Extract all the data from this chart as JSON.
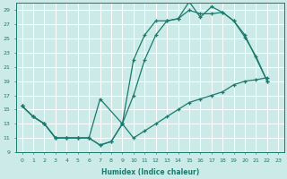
{
  "xlabel": "Humidex (Indice chaleur)",
  "bg_color": "#cceae7",
  "line_color": "#1a7a6e",
  "grid_color": "#ffffff",
  "xlim": [
    -0.5,
    23.5
  ],
  "ylim": [
    9,
    30
  ],
  "xticks": [
    0,
    1,
    2,
    3,
    4,
    5,
    6,
    7,
    8,
    9,
    10,
    11,
    12,
    13,
    14,
    15,
    16,
    17,
    18,
    19,
    20,
    21,
    22,
    23
  ],
  "yticks": [
    9,
    11,
    13,
    15,
    17,
    19,
    21,
    23,
    25,
    27,
    29
  ],
  "line1_x": [
    0,
    1,
    2,
    3,
    4,
    5,
    6,
    7,
    8,
    9,
    10,
    11,
    12,
    13,
    14,
    15,
    16,
    17,
    18,
    19,
    20,
    21,
    22
  ],
  "line1_y": [
    15.5,
    14.0,
    13.0,
    11.0,
    11.0,
    11.0,
    11.0,
    10.0,
    10.5,
    13.0,
    22.0,
    25.5,
    27.5,
    27.5,
    27.8,
    30.2,
    28.0,
    29.5,
    28.7,
    27.5,
    25.2,
    22.5,
    19.0
  ],
  "line2_x": [
    0,
    1,
    2,
    3,
    4,
    5,
    6,
    7,
    9,
    10,
    11,
    12,
    13,
    14,
    15,
    16,
    17,
    18,
    19,
    20,
    22
  ],
  "line2_y": [
    15.5,
    14.0,
    13.0,
    11.0,
    11.0,
    11.0,
    11.0,
    16.5,
    13.0,
    17.0,
    22.0,
    25.5,
    27.5,
    27.8,
    29.0,
    28.5,
    28.5,
    28.7,
    27.5,
    25.5,
    19.0
  ],
  "line3_x": [
    0,
    1,
    2,
    3,
    4,
    5,
    6,
    7,
    8,
    9,
    10,
    11,
    12,
    13,
    14,
    15,
    16,
    17,
    18,
    19,
    20,
    21,
    22
  ],
  "line3_y": [
    15.5,
    14.0,
    13.0,
    11.0,
    11.0,
    11.0,
    11.0,
    10.0,
    10.5,
    13.0,
    11.0,
    12.0,
    13.0,
    14.0,
    15.0,
    16.0,
    16.5,
    17.0,
    17.5,
    18.5,
    19.0,
    19.2,
    19.5
  ]
}
